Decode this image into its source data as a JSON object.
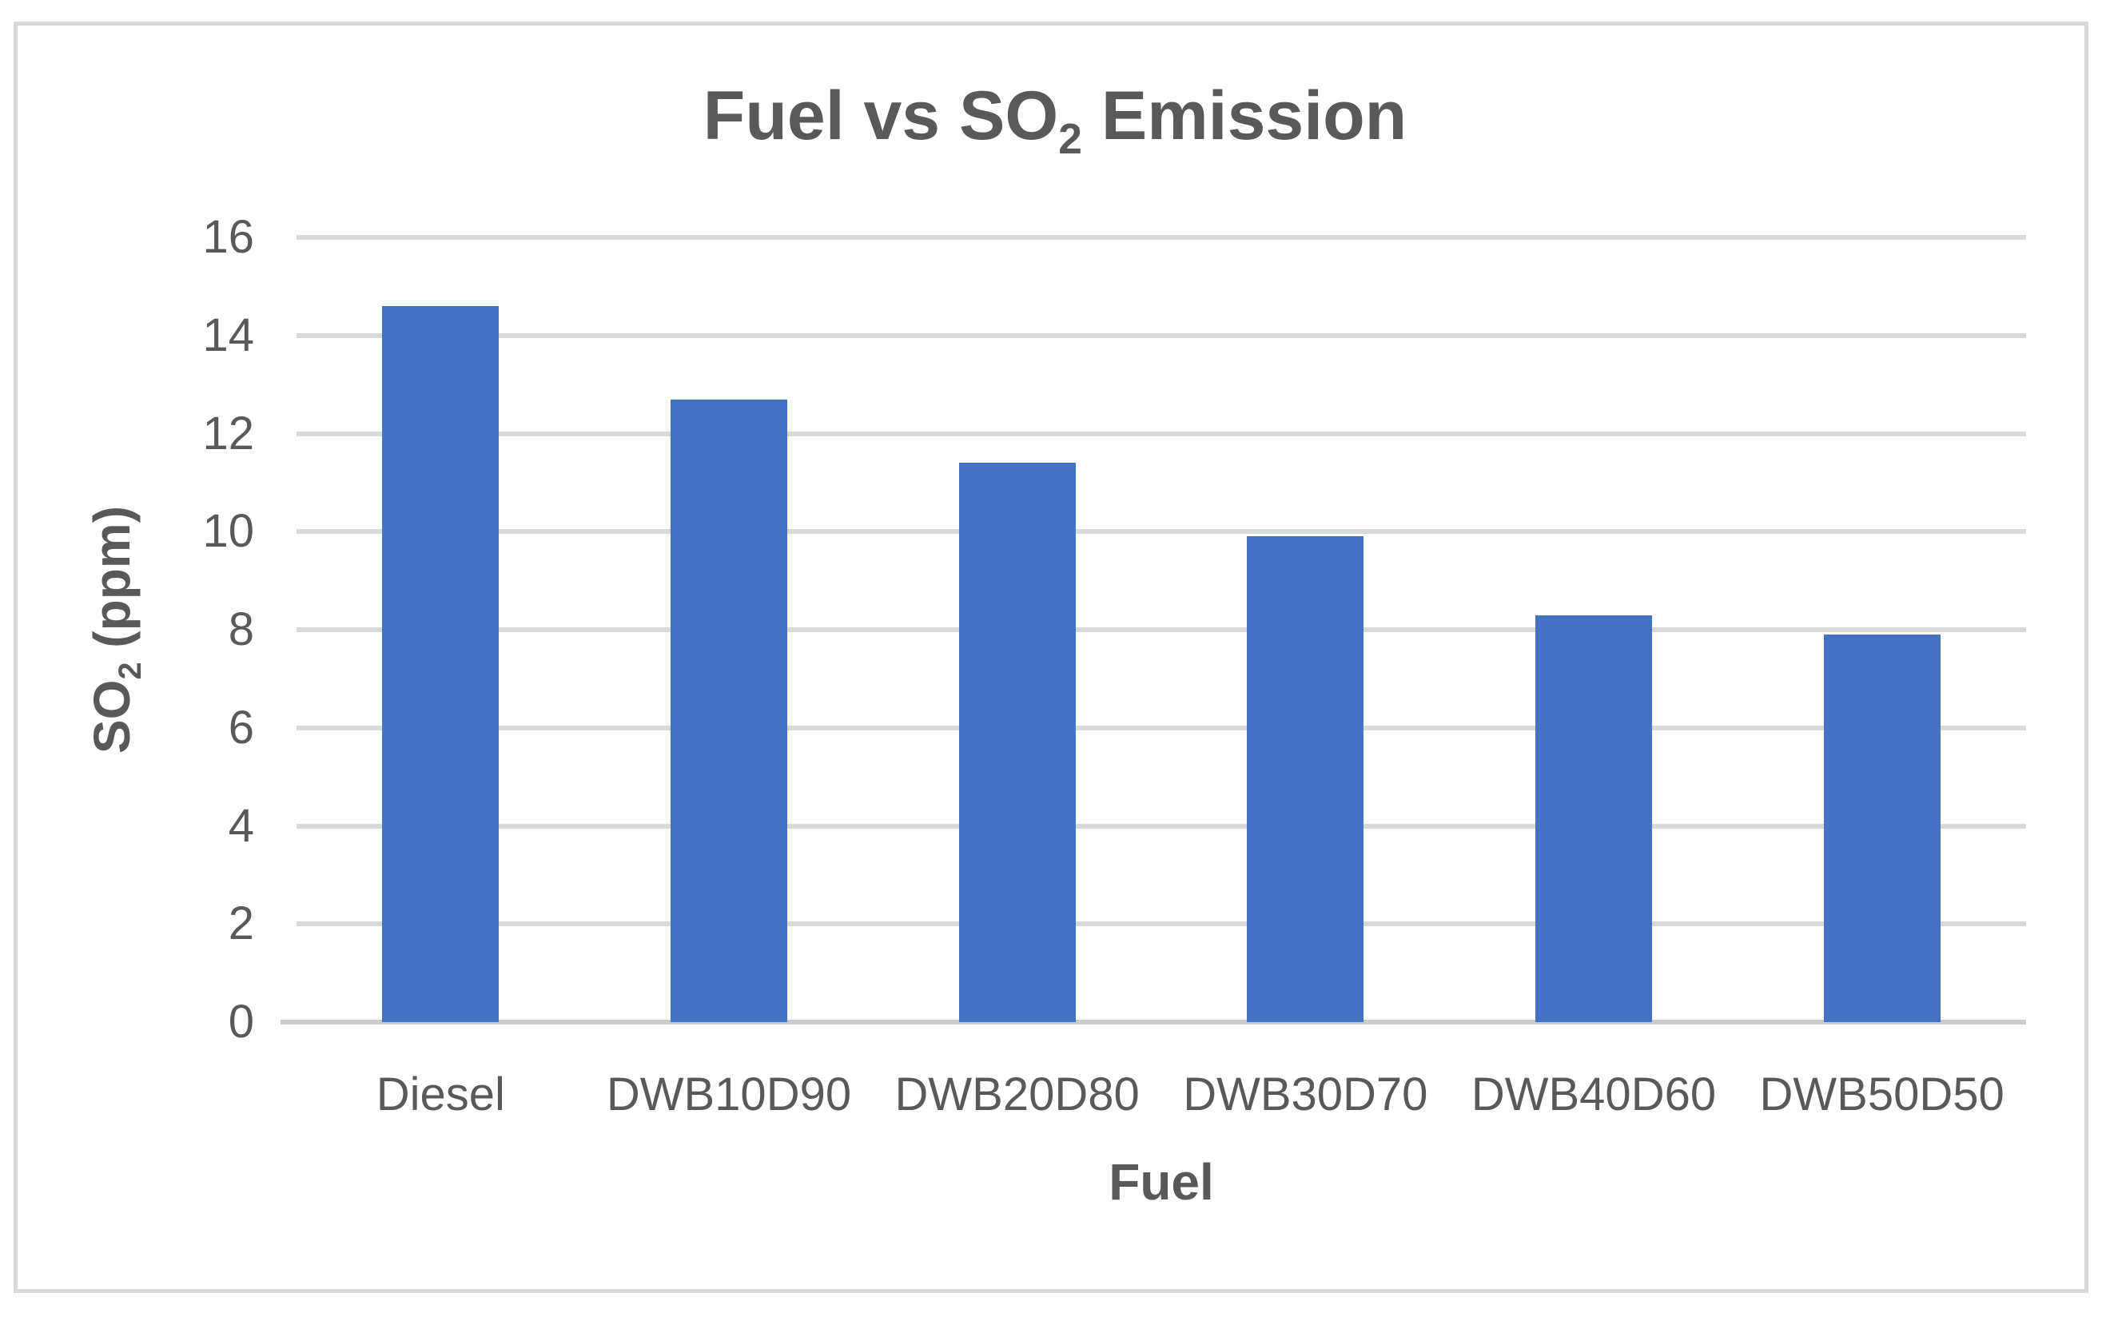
{
  "chart_data": {
    "type": "bar",
    "title": {
      "prefix": "Fuel vs SO",
      "subscript": "2",
      "suffix": " Emission"
    },
    "xlabel": "Fuel",
    "ylabel": {
      "prefix": "SO",
      "subscript": "2",
      "suffix": " (ppm)"
    },
    "categories": [
      "Diesel",
      "DWB10D90",
      "DWB20D80",
      "DWB30D70",
      "DWB40D60",
      "DWB50D50"
    ],
    "values": [
      14.6,
      12.7,
      11.4,
      9.9,
      8.3,
      7.9
    ],
    "ylim": [
      0,
      16
    ],
    "ytick_step": 2,
    "ytick_labels": [
      "0",
      "2",
      "4",
      "6",
      "8",
      "10",
      "12",
      "14",
      "16"
    ],
    "grid": true,
    "legend": false,
    "colors": {
      "bar": "#4472C4",
      "gridline": "#D9D9D9",
      "axis_line": "#CBCBCB",
      "text": "#595959",
      "border": "#D9D9D9",
      "background": "#FFFFFF"
    }
  }
}
